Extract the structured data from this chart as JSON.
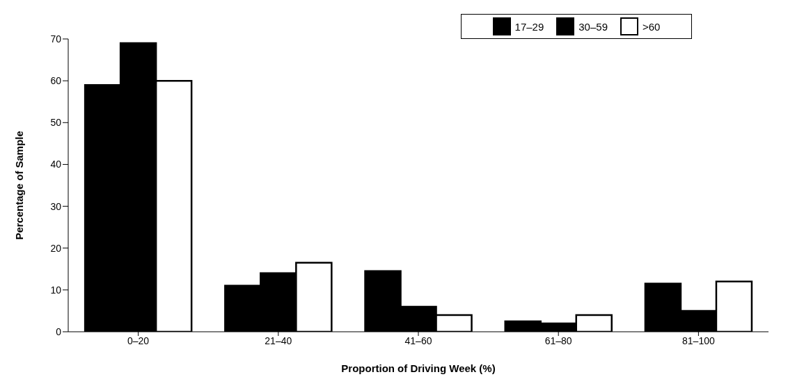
{
  "chart_data": {
    "type": "bar",
    "xlabel": "Proportion of Driving Week (%)",
    "ylabel": "Percentage of Sample",
    "categories": [
      "0–20",
      "21–40",
      "41–60",
      "61–80",
      "81–100"
    ],
    "series": [
      {
        "name": "17–29",
        "color": "#000000",
        "values": [
          59,
          11,
          14.5,
          2.5,
          11.5
        ]
      },
      {
        "name": "30–59",
        "color": "#000000",
        "values": [
          69,
          14,
          6,
          2,
          5
        ]
      },
      {
        "name": ">60",
        "color": "#ffffff",
        "values": [
          60,
          16.5,
          4,
          4,
          12
        ]
      }
    ],
    "ylim": [
      0,
      70
    ],
    "yticks": [
      0,
      10,
      20,
      30,
      40,
      50,
      60,
      70
    ],
    "grid": false,
    "legend": "top right"
  }
}
